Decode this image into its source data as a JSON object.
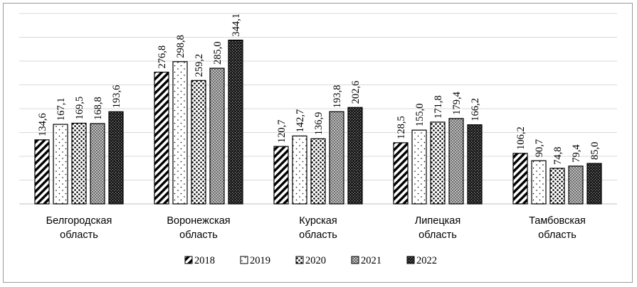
{
  "chart_data": {
    "type": "bar",
    "categories": [
      [
        "Белгородская",
        "область"
      ],
      [
        "Воронежская",
        "область"
      ],
      [
        "Курская",
        "область"
      ],
      [
        "Липецкая",
        "область"
      ],
      [
        "Тамбовская",
        "область"
      ]
    ],
    "series": [
      {
        "name": "2018",
        "values": [
          134.6,
          276.8,
          120.7,
          128.5,
          106.2
        ],
        "labels": [
          "134,6",
          "276,8",
          "120,7",
          "128,5",
          "106,2"
        ],
        "pattern": "hatch"
      },
      {
        "name": "2019",
        "values": [
          167.1,
          298.8,
          142.7,
          155.0,
          90.7
        ],
        "labels": [
          "167,1",
          "298,8",
          "142,7",
          "155,0",
          "90,7"
        ],
        "pattern": "sparse-dots"
      },
      {
        "name": "2020",
        "values": [
          169.5,
          259.2,
          136.9,
          171.8,
          74.8
        ],
        "labels": [
          "169,5",
          "259,2",
          "136,9",
          "171,8",
          "74,8"
        ],
        "pattern": "dots"
      },
      {
        "name": "2021",
        "values": [
          168.8,
          285.0,
          193.8,
          179.4,
          79.4
        ],
        "labels": [
          "168,8",
          "285,0",
          "193,8",
          "179,4",
          "79,4"
        ],
        "pattern": "checker"
      },
      {
        "name": "2022",
        "values": [
          193.6,
          344.1,
          202.6,
          166.2,
          85.0
        ],
        "labels": [
          "193,6",
          "344,1",
          "202,6",
          "166,2",
          "85,0"
        ],
        "pattern": "dense"
      }
    ],
    "title": "",
    "xlabel": "",
    "ylabel": "",
    "ylim": [
      0,
      400
    ],
    "grid": true,
    "legend_position": "bottom",
    "data_labels": true
  }
}
